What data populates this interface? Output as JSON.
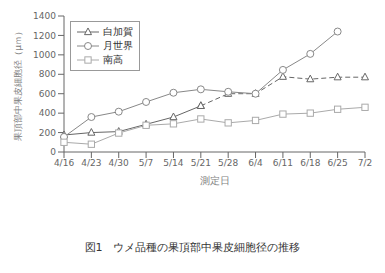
{
  "chart_data": {
    "type": "line",
    "title": "図1　ウメ品種の果頂部中果皮細胞径の推移",
    "x_label": "測定日",
    "y_label": "果頂部中果皮細胞径（μｍ）",
    "categories": [
      "4/16",
      "4/23",
      "4/30",
      "5/7",
      "5/14",
      "5/21",
      "5/28",
      "6/4",
      "6/11",
      "6/18",
      "6/25",
      "7/2"
    ],
    "series": [
      {
        "name": "白加賀",
        "values": [
          175,
          200,
          210,
          285,
          360,
          475,
          null,
          null,
          null,
          null,
          null,
          null
        ],
        "color": "#666666",
        "marker": "triangle",
        "line_style": "solid"
      },
      {
        "name": "白加賀",
        "values": [
          null,
          null,
          null,
          null,
          null,
          475,
          600,
          600,
          775,
          750,
          770,
          770
        ],
        "color": "#666666",
        "marker": "triangle",
        "line_style": "dashed"
      },
      {
        "name": "月世界",
        "values": [
          155,
          360,
          415,
          515,
          610,
          645,
          620,
          600,
          845,
          1010,
          1240,
          null
        ],
        "color": "#888888",
        "marker": "circle",
        "line_style": "solid"
      },
      {
        "name": "南高",
        "values": [
          100,
          80,
          195,
          275,
          290,
          340,
          300,
          325,
          390,
          400,
          440,
          460
        ],
        "color": "#aaaaaa",
        "marker": "square",
        "line_style": "solid"
      }
    ],
    "ylim": [
      0,
      1400
    ],
    "yticks": [
      0,
      200,
      400,
      600,
      800,
      1000,
      1200,
      1400
    ],
    "grid": false,
    "legend": "upper left"
  }
}
